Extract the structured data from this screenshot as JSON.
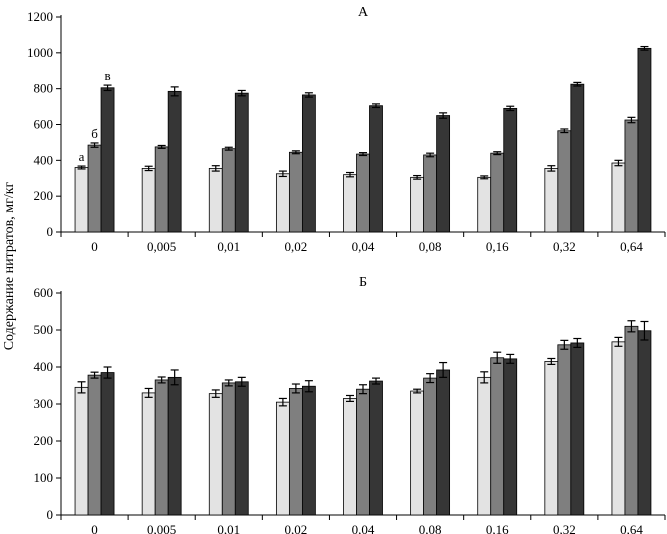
{
  "ylabel": "Содержание нитратов, мг/кг",
  "colors": {
    "a": "#e3e3e3",
    "b": "#7f7f7f",
    "c": "#363636"
  },
  "chart_data": [
    {
      "type": "bar",
      "title": "А",
      "ylabel": "Содержание нитратов, мг/кг",
      "categories": [
        "0",
        "0,005",
        "0,01",
        "0,02",
        "0,04",
        "0,08",
        "0,16",
        "0,32",
        "0,64"
      ],
      "ylim": [
        0,
        1200
      ],
      "yticks": [
        0,
        200,
        400,
        600,
        800,
        1000,
        1200
      ],
      "bar_letters": [
        "а",
        "б",
        "в"
      ],
      "series": [
        {
          "values": [
            360,
            355,
            355,
            325,
            320,
            305,
            305,
            355,
            385
          ],
          "errors": [
            8,
            12,
            15,
            15,
            12,
            10,
            8,
            15,
            15
          ]
        },
        {
          "values": [
            485,
            475,
            465,
            445,
            435,
            430,
            440,
            565,
            625
          ],
          "errors": [
            12,
            8,
            8,
            8,
            8,
            10,
            8,
            10,
            15
          ]
        },
        {
          "values": [
            805,
            785,
            775,
            765,
            705,
            650,
            690,
            825,
            1025
          ],
          "errors": [
            15,
            25,
            15,
            12,
            10,
            15,
            12,
            10,
            10
          ]
        }
      ]
    },
    {
      "type": "bar",
      "title": "Б",
      "categories": [
        "0",
        "0,005",
        "0,01",
        "0,02",
        "0,04",
        "0,08",
        "0,16",
        "0,32",
        "0,64"
      ],
      "ylim": [
        0,
        600
      ],
      "yticks": [
        0,
        100,
        200,
        300,
        400,
        500,
        600
      ],
      "series": [
        {
          "values": [
            345,
            330,
            328,
            305,
            315,
            335,
            372,
            415,
            468
          ],
          "errors": [
            15,
            12,
            10,
            10,
            8,
            5,
            15,
            8,
            12
          ]
        },
        {
          "values": [
            378,
            365,
            357,
            342,
            340,
            370,
            425,
            460,
            510
          ],
          "errors": [
            8,
            8,
            8,
            12,
            12,
            12,
            15,
            12,
            15
          ]
        },
        {
          "values": [
            385,
            372,
            360,
            348,
            362,
            392,
            422,
            465,
            498
          ],
          "errors": [
            15,
            20,
            12,
            15,
            8,
            20,
            12,
            12,
            25
          ]
        }
      ]
    }
  ]
}
